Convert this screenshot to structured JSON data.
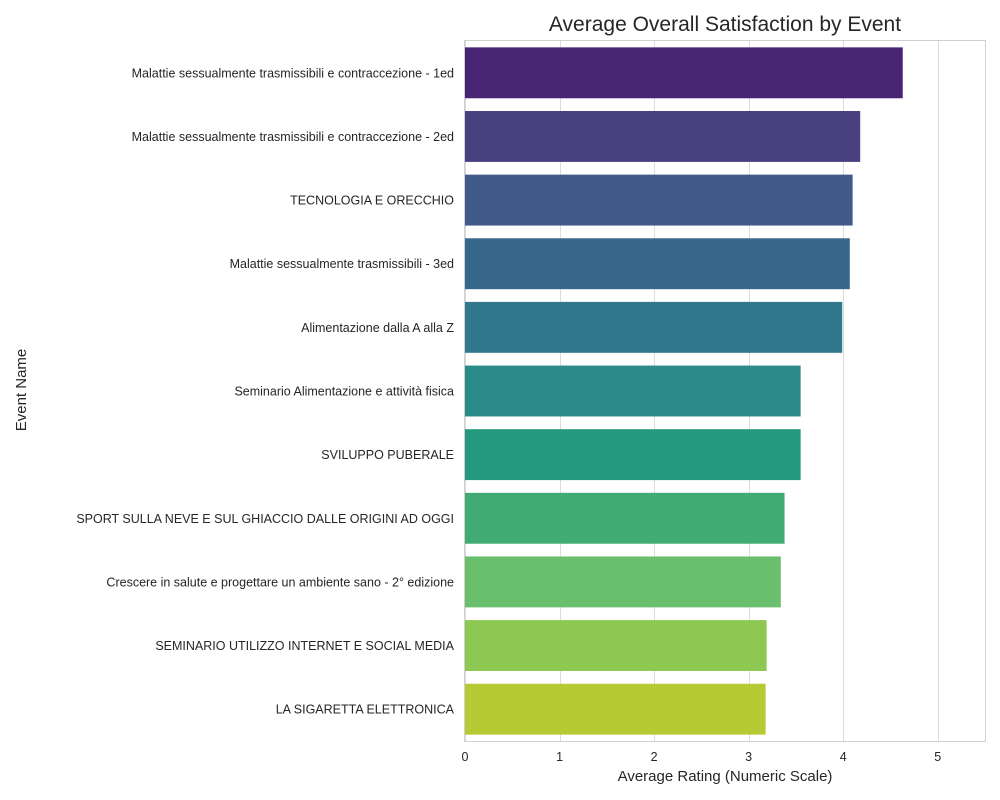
{
  "chart_data": {
    "type": "bar",
    "orientation": "horizontal",
    "title": "Average Overall Satisfaction by Event",
    "xlabel": "Average Rating (Numeric Scale)",
    "ylabel": "Event Name",
    "xlim": [
      0,
      5.5
    ],
    "xticks": [
      0,
      1,
      2,
      3,
      4,
      5
    ],
    "grid": true,
    "categories": [
      "Malattie sessualmente trasmissibili e contraccezione - 1ed",
      "Malattie sessualmente trasmissibili e contraccezione - 2ed",
      "TECNOLOGIA E ORECCHIO",
      "Malattie sessualmente trasmissibili - 3ed",
      "Alimentazione dalla A alla Z",
      "Seminario Alimentazione e attività fisica",
      "SVILUPPO PUBERALE",
      "SPORT SULLA NEVE E SUL GHIACCIO DALLE ORIGINI AD OGGI",
      "Crescere in salute e progettare un ambiente sano - 2° edizione",
      "SEMINARIO UTILIZZO INTERNET E SOCIAL MEDIA",
      "LA SIGARETTA ELETTRONICA"
    ],
    "values": [
      4.63,
      4.18,
      4.1,
      4.07,
      3.99,
      3.55,
      3.55,
      3.38,
      3.34,
      3.19,
      3.18
    ],
    "colors": [
      "#482474",
      "#48407f",
      "#425a8a",
      "#38678c",
      "#31788e",
      "#2a8b88",
      "#24997f",
      "#40ab72",
      "#69bf6b",
      "#8dc853",
      "#b6ca35"
    ]
  }
}
